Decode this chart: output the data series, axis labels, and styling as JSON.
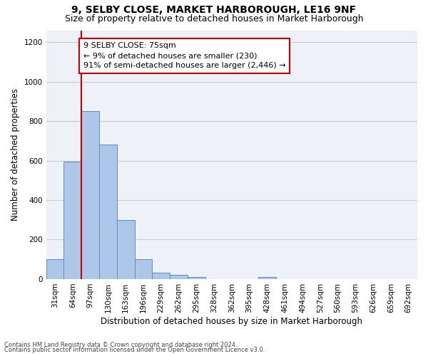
{
  "title": "9, SELBY CLOSE, MARKET HARBOROUGH, LE16 9NF",
  "subtitle": "Size of property relative to detached houses in Market Harborough",
  "xlabel": "Distribution of detached houses by size in Market Harborough",
  "ylabel": "Number of detached properties",
  "footnote1": "Contains HM Land Registry data © Crown copyright and database right 2024.",
  "footnote2": "Contains public sector information licensed under the Open Government Licence v3.0.",
  "categories": [
    "31sqm",
    "64sqm",
    "97sqm",
    "130sqm",
    "163sqm",
    "196sqm",
    "229sqm",
    "262sqm",
    "295sqm",
    "328sqm",
    "362sqm",
    "395sqm",
    "428sqm",
    "461sqm",
    "494sqm",
    "527sqm",
    "560sqm",
    "593sqm",
    "626sqm",
    "659sqm",
    "692sqm"
  ],
  "values": [
    100,
    595,
    850,
    680,
    300,
    100,
    32,
    22,
    10,
    0,
    0,
    0,
    12,
    0,
    0,
    0,
    0,
    0,
    0,
    0,
    0
  ],
  "bar_color": "#aec6e8",
  "bar_edge_color": "#5a8fc2",
  "vline_x": 1.5,
  "vline_color": "#cc0000",
  "annotation_text": "9 SELBY CLOSE: 75sqm\n← 9% of detached houses are smaller (230)\n91% of semi-detached houses are larger (2,446) →",
  "annotation_box_color": "#ffffff",
  "annotation_box_edge": "#cc0000",
  "ylim": [
    0,
    1260
  ],
  "yticks": [
    0,
    200,
    400,
    600,
    800,
    1000,
    1200
  ],
  "grid_color": "#cccccc",
  "background_color": "#eef2f8",
  "title_fontsize": 10,
  "subtitle_fontsize": 9,
  "axis_label_fontsize": 8.5,
  "tick_fontsize": 7.5,
  "annotation_fontsize": 8
}
